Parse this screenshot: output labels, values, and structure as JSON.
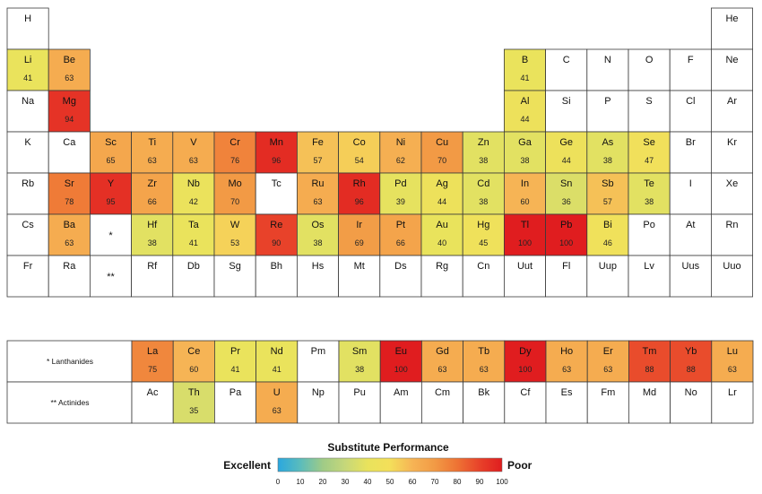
{
  "chart_data": {
    "type": "heatmap",
    "title": "Substitute Performance",
    "scale": {
      "min": 0,
      "max": 100,
      "low_label": "Excellent",
      "high_label": "Poor",
      "ticks": [
        0,
        10,
        20,
        30,
        40,
        50,
        60,
        70,
        80,
        90,
        100
      ],
      "colors": [
        "#2aa7df",
        "#5bbcbc",
        "#9fcb87",
        "#c6d77a",
        "#e9e35c",
        "#f4df5a",
        "#f6b455",
        "#f29a45",
        "#ee7334",
        "#e8422a",
        "#e01d1f"
      ]
    },
    "main_table": [
      [
        {
          "s": "H",
          "v": null
        },
        {},
        {},
        {},
        {},
        {},
        {},
        {},
        {},
        {},
        {},
        {},
        {},
        {},
        {},
        {},
        {},
        {
          "s": "He",
          "v": null
        }
      ],
      [
        {
          "s": "Li",
          "v": 41
        },
        {
          "s": "Be",
          "v": 63
        },
        {},
        {},
        {},
        {},
        {},
        {},
        {},
        {},
        {},
        {},
        {
          "s": "B",
          "v": 41
        },
        {
          "s": "C",
          "v": null
        },
        {
          "s": "N",
          "v": null
        },
        {
          "s": "O",
          "v": null
        },
        {
          "s": "F",
          "v": null
        },
        {
          "s": "Ne",
          "v": null
        }
      ],
      [
        {
          "s": "Na",
          "v": null
        },
        {
          "s": "Mg",
          "v": 94
        },
        {},
        {},
        {},
        {},
        {},
        {},
        {},
        {},
        {},
        {},
        {
          "s": "Al",
          "v": 44
        },
        {
          "s": "Si",
          "v": null
        },
        {
          "s": "P",
          "v": null
        },
        {
          "s": "S",
          "v": null
        },
        {
          "s": "Cl",
          "v": null
        },
        {
          "s": "Ar",
          "v": null
        }
      ],
      [
        {
          "s": "K",
          "v": null
        },
        {
          "s": "Ca",
          "v": null
        },
        {
          "s": "Sc",
          "v": 65
        },
        {
          "s": "Ti",
          "v": 63
        },
        {
          "s": "V",
          "v": 63
        },
        {
          "s": "Cr",
          "v": 76
        },
        {
          "s": "Mn",
          "v": 96
        },
        {
          "s": "Fe",
          "v": 57
        },
        {
          "s": "Co",
          "v": 54
        },
        {
          "s": "Ni",
          "v": 62
        },
        {
          "s": "Cu",
          "v": 70
        },
        {
          "s": "Zn",
          "v": 38
        },
        {
          "s": "Ga",
          "v": 38
        },
        {
          "s": "Ge",
          "v": 44
        },
        {
          "s": "As",
          "v": 38
        },
        {
          "s": "Se",
          "v": 47
        },
        {
          "s": "Br",
          "v": null
        },
        {
          "s": "Kr",
          "v": null
        }
      ],
      [
        {
          "s": "Rb",
          "v": null
        },
        {
          "s": "Sr",
          "v": 78
        },
        {
          "s": "Y",
          "v": 95
        },
        {
          "s": "Zr",
          "v": 66
        },
        {
          "s": "Nb",
          "v": 42
        },
        {
          "s": "Mo",
          "v": 70
        },
        {
          "s": "Tc",
          "v": null
        },
        {
          "s": "Ru",
          "v": 63
        },
        {
          "s": "Rh",
          "v": 96
        },
        {
          "s": "Pd",
          "v": 39
        },
        {
          "s": "Ag",
          "v": 44
        },
        {
          "s": "Cd",
          "v": 38
        },
        {
          "s": "In",
          "v": 60
        },
        {
          "s": "Sn",
          "v": 36
        },
        {
          "s": "Sb",
          "v": 57
        },
        {
          "s": "Te",
          "v": 38
        },
        {
          "s": "I",
          "v": null
        },
        {
          "s": "Xe",
          "v": null
        }
      ],
      [
        {
          "s": "Cs",
          "v": null
        },
        {
          "s": "Ba",
          "v": 63
        },
        {
          "s": "*",
          "v": null
        },
        {
          "s": "Hf",
          "v": 38
        },
        {
          "s": "Ta",
          "v": 41
        },
        {
          "s": "W",
          "v": 53
        },
        {
          "s": "Re",
          "v": 90
        },
        {
          "s": "Os",
          "v": 38
        },
        {
          "s": "Ir",
          "v": 69
        },
        {
          "s": "Pt",
          "v": 66
        },
        {
          "s": "Au",
          "v": 40
        },
        {
          "s": "Hg",
          "v": 45
        },
        {
          "s": "Tl",
          "v": 100
        },
        {
          "s": "Pb",
          "v": 100
        },
        {
          "s": "Bi",
          "v": 46
        },
        {
          "s": "Po",
          "v": null
        },
        {
          "s": "At",
          "v": null
        },
        {
          "s": "Rn",
          "v": null
        }
      ],
      [
        {
          "s": "Fr",
          "v": null
        },
        {
          "s": "Ra",
          "v": null
        },
        {
          "s": "**",
          "v": null
        },
        {
          "s": "Rf",
          "v": null
        },
        {
          "s": "Db",
          "v": null
        },
        {
          "s": "Sg",
          "v": null
        },
        {
          "s": "Bh",
          "v": null
        },
        {
          "s": "Hs",
          "v": null
        },
        {
          "s": "Mt",
          "v": null
        },
        {
          "s": "Ds",
          "v": null
        },
        {
          "s": "Rg",
          "v": null
        },
        {
          "s": "Cn",
          "v": null
        },
        {
          "s": "Uut",
          "v": null
        },
        {
          "s": "Fl",
          "v": null
        },
        {
          "s": "Uup",
          "v": null
        },
        {
          "s": "Lv",
          "v": null
        },
        {
          "s": "Uus",
          "v": null
        },
        {
          "s": "Uuo",
          "v": null
        }
      ]
    ],
    "series_rows": [
      {
        "label": "* Lanthanides",
        "cells": [
          {
            "s": "La",
            "v": 75
          },
          {
            "s": "Ce",
            "v": 60
          },
          {
            "s": "Pr",
            "v": 41
          },
          {
            "s": "Nd",
            "v": 41
          },
          {
            "s": "Pm",
            "v": null
          },
          {
            "s": "Sm",
            "v": 38
          },
          {
            "s": "Eu",
            "v": 100
          },
          {
            "s": "Gd",
            "v": 63
          },
          {
            "s": "Tb",
            "v": 63
          },
          {
            "s": "Dy",
            "v": 100
          },
          {
            "s": "Ho",
            "v": 63
          },
          {
            "s": "Er",
            "v": 63
          },
          {
            "s": "Tm",
            "v": 88
          },
          {
            "s": "Yb",
            "v": 88
          },
          {
            "s": "Lu",
            "v": 63
          }
        ]
      },
      {
        "label": "** Actinides",
        "cells": [
          {
            "s": "Ac",
            "v": null
          },
          {
            "s": "Th",
            "v": 35
          },
          {
            "s": "Pa",
            "v": null
          },
          {
            "s": "U",
            "v": 63
          },
          {
            "s": "Np",
            "v": null
          },
          {
            "s": "Pu",
            "v": null
          },
          {
            "s": "Am",
            "v": null
          },
          {
            "s": "Cm",
            "v": null
          },
          {
            "s": "Bk",
            "v": null
          },
          {
            "s": "Cf",
            "v": null
          },
          {
            "s": "Es",
            "v": null
          },
          {
            "s": "Fm",
            "v": null
          },
          {
            "s": "Md",
            "v": null
          },
          {
            "s": "No",
            "v": null
          },
          {
            "s": "Lr",
            "v": null
          }
        ]
      }
    ]
  }
}
